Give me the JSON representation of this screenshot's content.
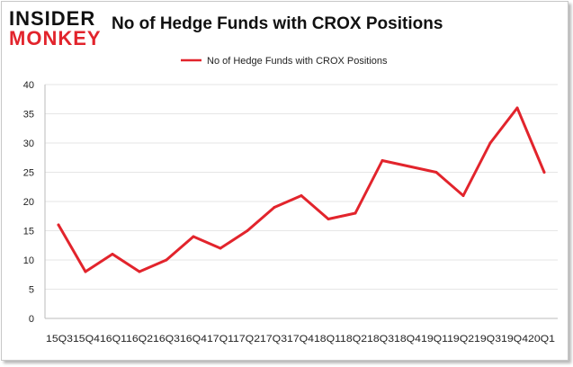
{
  "logo": {
    "line1": "INSIDER",
    "line2": "MONKEY"
  },
  "chart_data": {
    "type": "line",
    "title": "No of Hedge Funds with CROX Positions",
    "xlabel": "",
    "ylabel": "",
    "categories": [
      "2015Q3",
      "2015Q4",
      "2016Q1",
      "2016Q2",
      "2016Q3",
      "2016Q4",
      "2017Q1",
      "2017Q2",
      "2017Q3",
      "2017Q4",
      "2018Q1",
      "2018Q2",
      "2018Q3",
      "2018Q4",
      "2019Q1",
      "2019Q2",
      "2019Q3",
      "2019Q4",
      "2020Q1"
    ],
    "tick_label_text": "15Q315Q416Q116Q216Q316Q417Q117Q217Q317Q418Q118Q218Q318Q419Q119Q219Q319Q420Q1",
    "series": [
      {
        "name": "No of Hedge Funds with CROX Positions",
        "values": [
          16,
          8,
          11,
          8,
          10,
          14,
          12,
          15,
          19,
          21,
          17,
          18,
          27,
          26,
          25,
          21,
          30,
          36,
          25
        ],
        "color": "#e2242c"
      }
    ],
    "ylim": [
      0,
      40
    ],
    "yticks": [
      "0",
      "5",
      "10",
      "15",
      "20",
      "25",
      "30",
      "35",
      "40"
    ],
    "grid": true,
    "legend": "top-center"
  }
}
